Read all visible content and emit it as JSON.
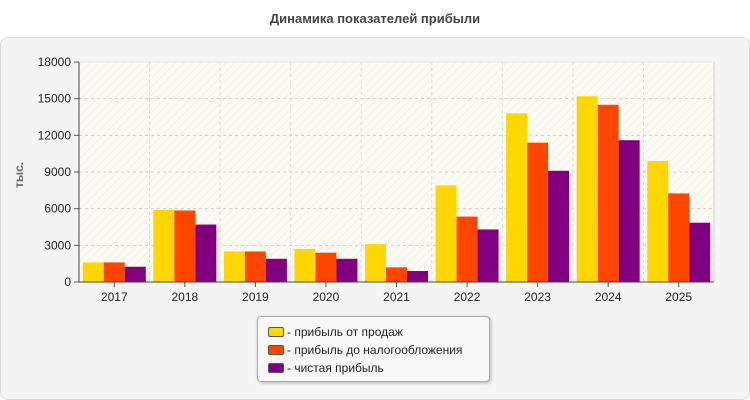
{
  "chart_data": {
    "type": "bar",
    "title": "Динамика показателей прибыли",
    "ylabel": "тыс.",
    "xlabel": "",
    "categories": [
      "2017",
      "2018",
      "2019",
      "2020",
      "2021",
      "2022",
      "2023",
      "2024",
      "2025"
    ],
    "series": [
      {
        "name": "- прибыль от продаж",
        "color": "#ffd700",
        "values": [
          1600,
          5900,
          2500,
          2700,
          3100,
          7900,
          13800,
          15200,
          9900
        ]
      },
      {
        "name": "- прибыль до налогообложения",
        "color": "#ff4500",
        "values": [
          1600,
          5850,
          2500,
          2400,
          1200,
          5350,
          11400,
          14500,
          7250
        ]
      },
      {
        "name": "- чистая прибыль",
        "color": "#800080",
        "values": [
          1250,
          4700,
          1900,
          1900,
          900,
          4300,
          9100,
          11600,
          4850
        ]
      }
    ],
    "ylim": [
      0,
      18000
    ],
    "yticks": [
      "0",
      "3000",
      "6000",
      "9000",
      "12000",
      "15000",
      "18000"
    ],
    "grid": true,
    "legend_position": "bottom"
  }
}
